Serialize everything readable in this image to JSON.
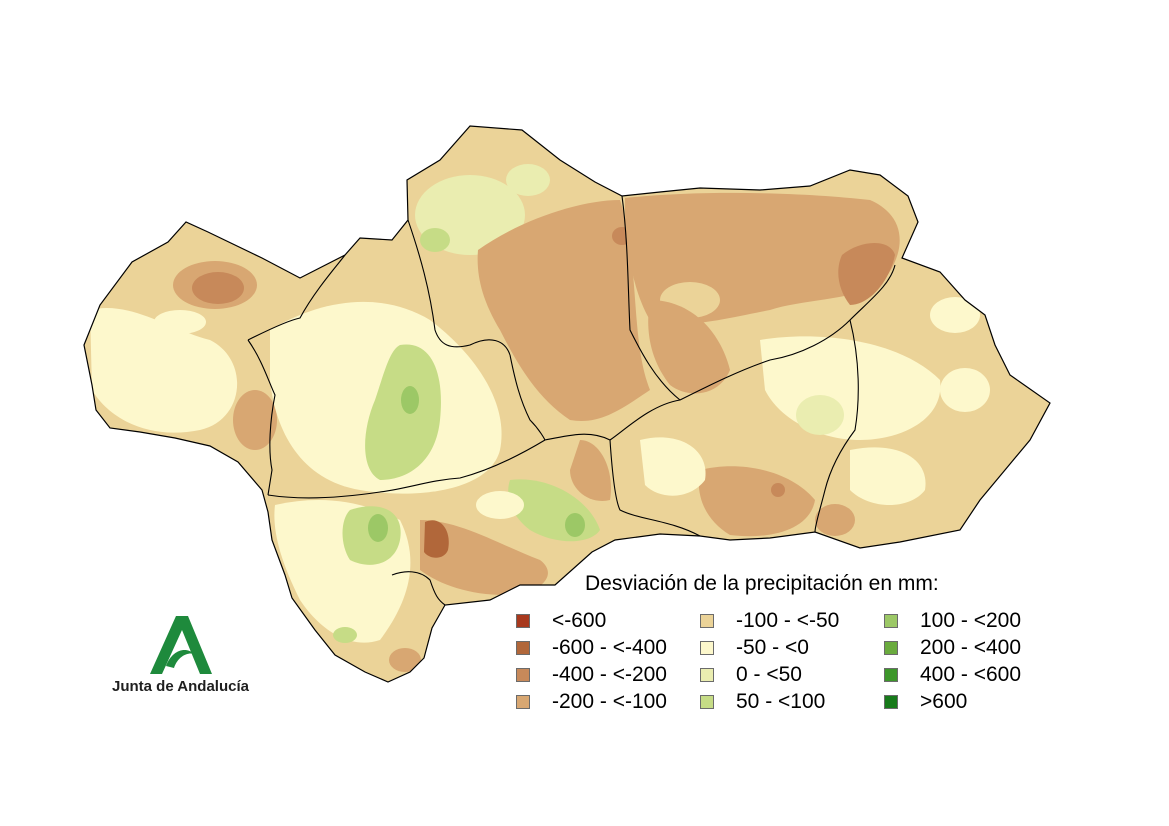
{
  "legend": {
    "title": "Desviación de la precipitación en mm:",
    "classes": [
      {
        "label": "<-600",
        "color": "#a8391d"
      },
      {
        "label": "-600 - <-400",
        "color": "#b1673a"
      },
      {
        "label": "-400 - <-200",
        "color": "#c7895a"
      },
      {
        "label": "-200 - <-100",
        "color": "#d8a772"
      },
      {
        "label": "-100 - <-50",
        "color": "#ebd398"
      },
      {
        "label": "-50 - <0",
        "color": "#fdf8cc"
      },
      {
        "label": "0 - <50",
        "color": "#eaedb0"
      },
      {
        "label": "50 - <100",
        "color": "#c6dc86"
      },
      {
        "label": "100 - <200",
        "color": "#9cc866"
      },
      {
        "label": "200 - <400",
        "color": "#6aab3e"
      },
      {
        "label": "400 - <600",
        "color": "#3d962a"
      },
      {
        "label": ">600",
        "color": "#177a1a"
      }
    ]
  },
  "logo": {
    "text": "Junta de Andalucía",
    "color": "#1e8a3c"
  }
}
